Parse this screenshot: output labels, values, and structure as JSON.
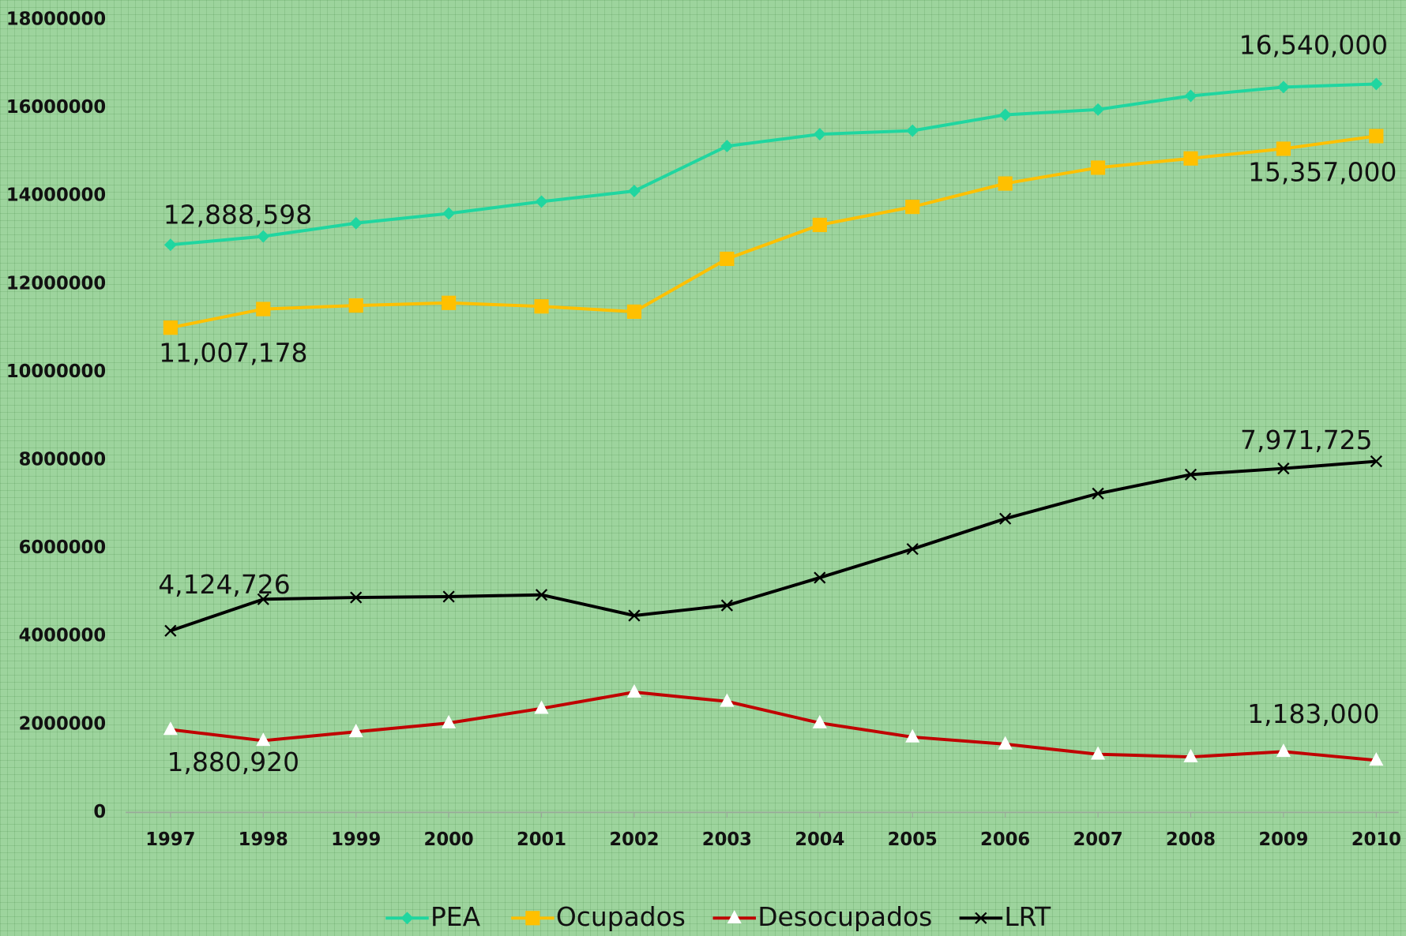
{
  "chart_data": {
    "type": "line",
    "categories": [
      "1997",
      "1998",
      "1999",
      "2000",
      "2001",
      "2002",
      "2003",
      "2004",
      "2005",
      "2006",
      "2007",
      "2008",
      "2009",
      "2010"
    ],
    "series": [
      {
        "name": "PEA",
        "color": "#1fd6a0",
        "marker": "diamond",
        "values": [
          12888598,
          13080000,
          13380000,
          13600000,
          13870000,
          14110000,
          15130000,
          15400000,
          15480000,
          15840000,
          15960000,
          16270000,
          16470000,
          16540000
        ],
        "value_labels": [
          "12,888,598",
          null,
          null,
          null,
          null,
          null,
          null,
          null,
          null,
          null,
          null,
          null,
          null,
          "16,540,000"
        ]
      },
      {
        "name": "Ocupados",
        "color": "#ffc000",
        "marker": "square",
        "values": [
          11007178,
          11430000,
          11510000,
          11570000,
          11490000,
          11370000,
          12570000,
          13340000,
          13750000,
          14280000,
          14640000,
          14850000,
          15070000,
          15357000
        ],
        "value_labels": [
          "11,007,178",
          null,
          null,
          null,
          null,
          null,
          null,
          null,
          null,
          null,
          null,
          null,
          null,
          "15,357,000"
        ]
      },
      {
        "name": "Desocupados",
        "color": "#c00000",
        "marker": "triangle",
        "values": [
          1880920,
          1630000,
          1830000,
          2030000,
          2360000,
          2730000,
          2520000,
          2030000,
          1710000,
          1550000,
          1320000,
          1260000,
          1380000,
          1183000
        ],
        "value_labels": [
          "1,880,920",
          null,
          null,
          null,
          null,
          null,
          null,
          null,
          null,
          null,
          null,
          null,
          null,
          "1,183,000"
        ]
      },
      {
        "name": "LRT",
        "color": "#000000",
        "marker": "x",
        "values": [
          4124726,
          4840000,
          4880000,
          4900000,
          4940000,
          4470000,
          4700000,
          5330000,
          5980000,
          6670000,
          7240000,
          7670000,
          7810000,
          7971725
        ],
        "value_labels": [
          "4,124,726",
          null,
          null,
          null,
          null,
          null,
          null,
          null,
          null,
          null,
          null,
          null,
          null,
          "7,971,725"
        ]
      }
    ],
    "ylim": [
      0,
      18000000
    ],
    "yticks": [
      0,
      2000000,
      4000000,
      6000000,
      8000000,
      10000000,
      12000000,
      14000000,
      16000000,
      18000000
    ],
    "legend": "bottom",
    "grid": false
  }
}
